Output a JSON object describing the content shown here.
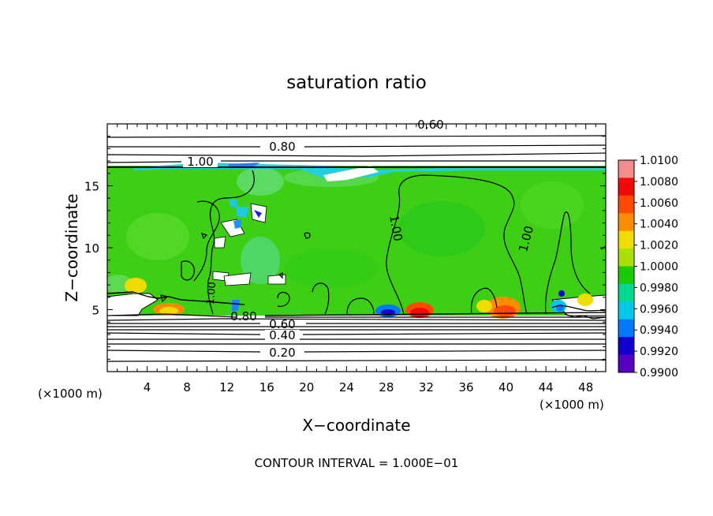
{
  "chart_data": {
    "type": "heatmap",
    "title": "saturation ratio",
    "xlabel": "X−coordinate",
    "ylabel": "Z−coordinate",
    "x_unit_left": "(×1000 m)",
    "x_unit_right": "(×1000 m)",
    "xlim": [
      0,
      50
    ],
    "ylim": [
      0,
      20
    ],
    "x_ticks": [
      4,
      8,
      12,
      16,
      20,
      24,
      28,
      32,
      36,
      40,
      44,
      48
    ],
    "y_ticks": [
      5,
      10,
      15
    ],
    "footer": "CONTOUR INTERVAL = 1.000E−01",
    "colorbar": {
      "labels": [
        "1.0100",
        "1.0080",
        "1.0060",
        "1.0040",
        "1.0020",
        "1.0000",
        "0.9980",
        "0.9960",
        "0.9940",
        "0.9920",
        "0.9900"
      ],
      "colors": [
        "#f48c8c",
        "#f00a0a",
        "#ff4a00",
        "#ff8c00",
        "#f0dc00",
        "#a8e000",
        "#18cc00",
        "#00d890",
        "#00c8e8",
        "#0078ff",
        "#1000d0",
        "#5800c0"
      ]
    },
    "contours": [
      {
        "label": "0.60",
        "z": 19.3
      },
      {
        "label": "0.80",
        "z": 18.1
      },
      {
        "label": "1.00",
        "z": 16.7
      },
      {
        "label": "0.80",
        "z": 4.5
      },
      {
        "label": "0.60",
        "z": 3.8
      },
      {
        "label": "0.40",
        "z": 3.0
      },
      {
        "label": "0.20",
        "z": 1.7
      },
      {
        "label": "1.00",
        "z": 11.5
      },
      {
        "label": "1.00",
        "z": 11.0
      },
      {
        "label": "1.00",
        "z": 7.0
      }
    ]
  }
}
